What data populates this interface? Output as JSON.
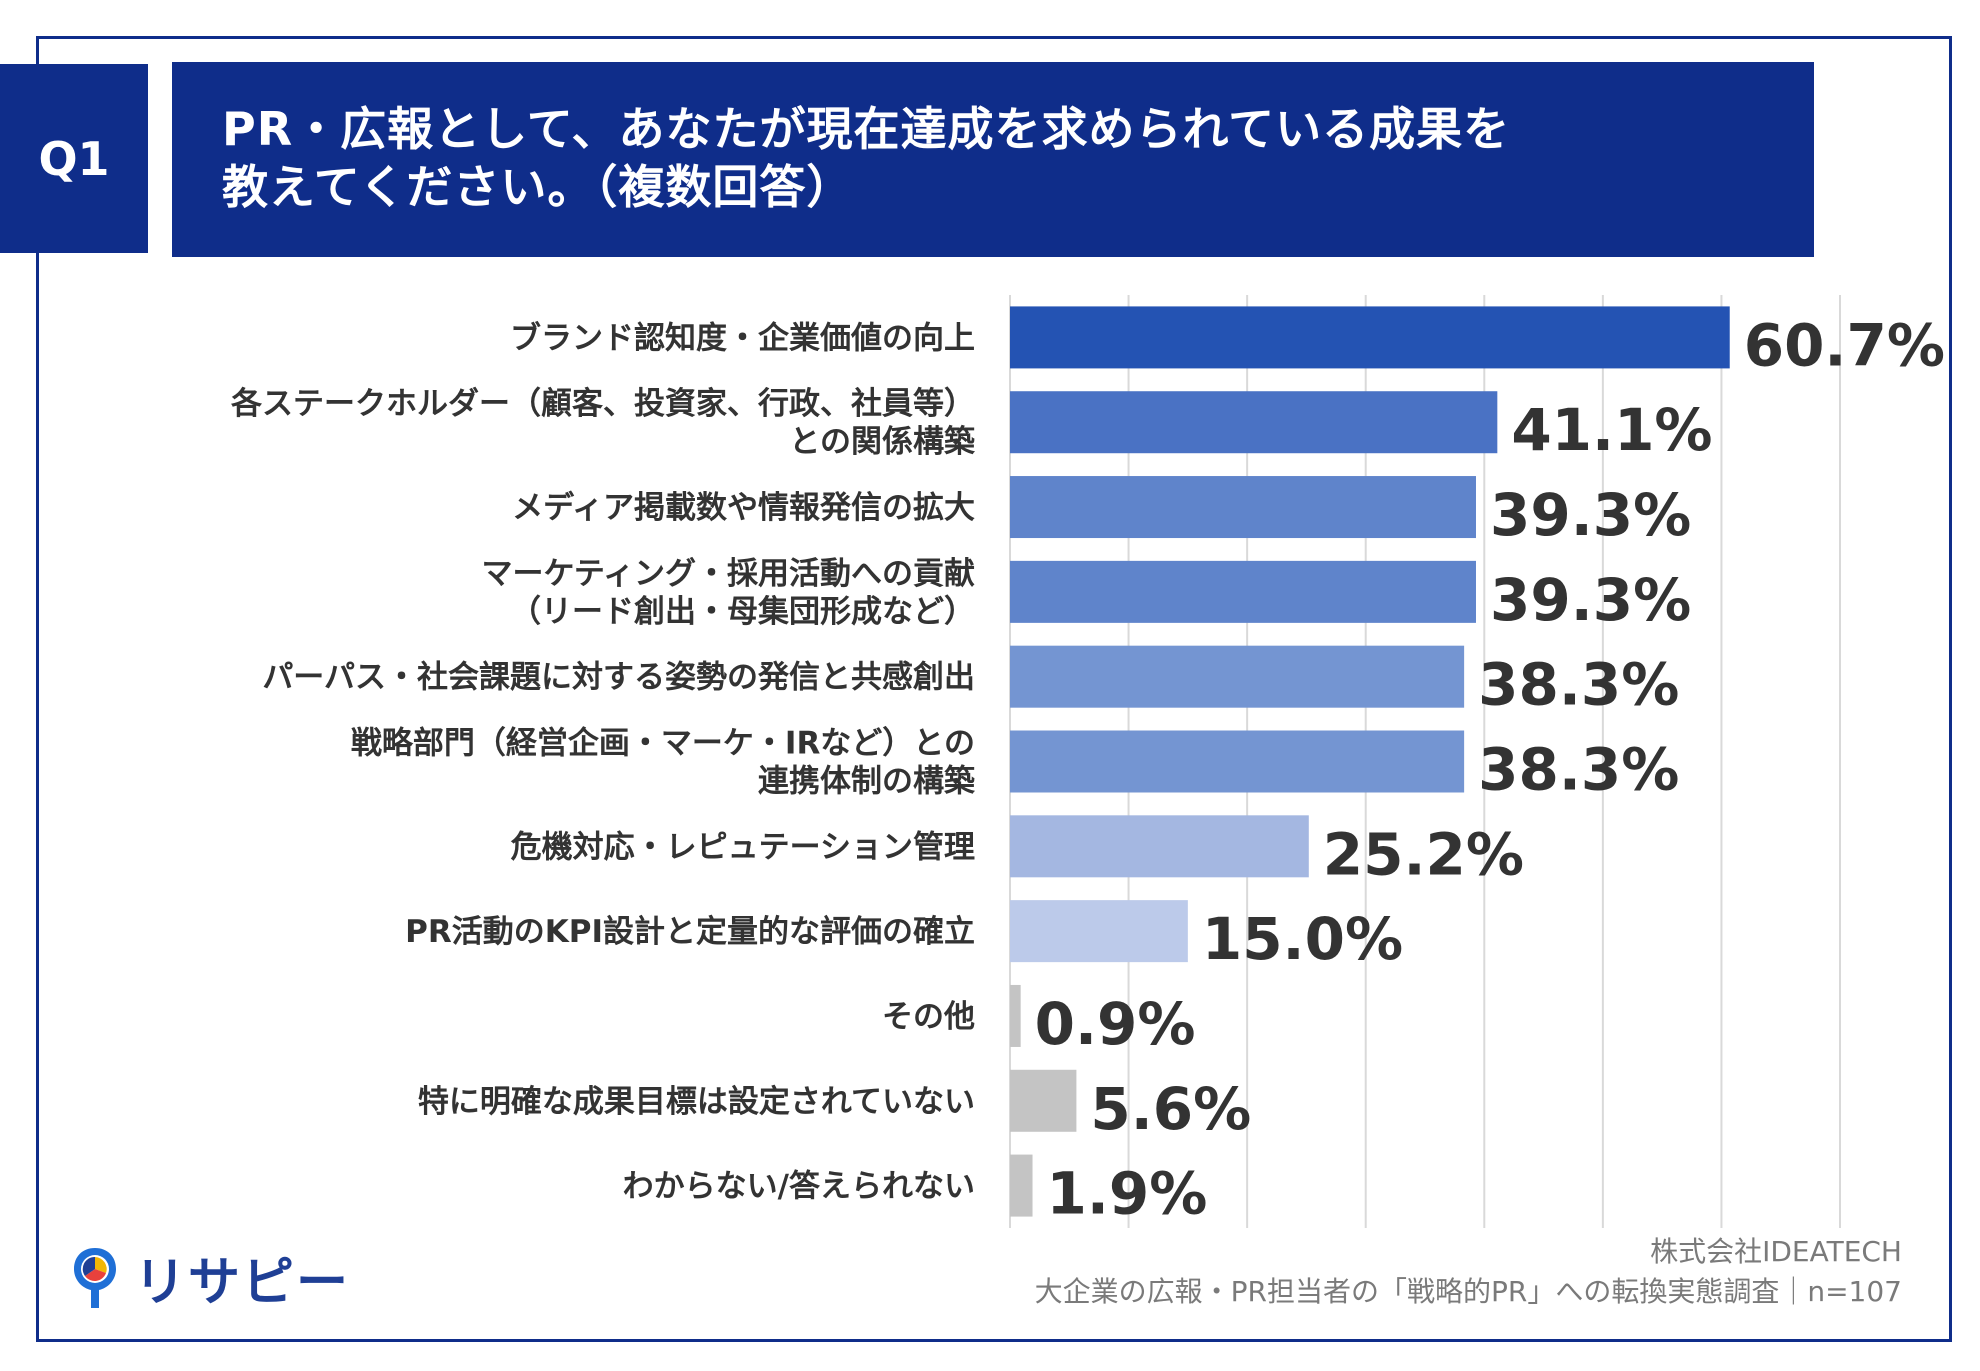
{
  "header": {
    "badge": "Q1",
    "title_line1": "PR・広報として、あなたが現在達成を求められている成果を",
    "title_line2": "教えてください。（複数回答）"
  },
  "chart_data": {
    "type": "bar",
    "orientation": "horizontal",
    "unit": "%",
    "categories": [
      [
        "ブランド認知度・企業価値の向上"
      ],
      [
        "各ステークホルダー（顧客、投資家、行政、社員等）",
        "との関係構築"
      ],
      [
        "メディア掲載数や情報発信の拡大"
      ],
      [
        "マーケティング・採用活動への貢献",
        "（リード創出・母集団形成など）"
      ],
      [
        "パーパス・社会課題に対する姿勢の発信と共感創出"
      ],
      [
        "戦略部門（経営企画・マーケ・IRなど）との",
        "連携体制の構築"
      ],
      [
        "危機対応・レピュテーション管理"
      ],
      [
        "PR活動のKPI設計と定量的な評価の確立"
      ],
      [
        "その他"
      ],
      [
        "特に明確な成果目標は設定されていない"
      ],
      [
        "わからない/答えられない"
      ]
    ],
    "values": [
      60.7,
      41.1,
      39.3,
      39.3,
      38.3,
      38.3,
      25.2,
      15.0,
      0.9,
      5.6,
      1.9
    ],
    "value_labels": [
      "60.7%",
      "41.1%",
      "39.3%",
      "39.3%",
      "38.3%",
      "38.3%",
      "25.2%",
      "15.0%",
      "0.9%",
      "5.6%",
      "1.9%"
    ],
    "bar_colors": [
      "#2453b3",
      "#4a72c4",
      "#5f84cb",
      "#5f84cb",
      "#7495d2",
      "#7495d2",
      "#a4b7e1",
      "#bccaea",
      "#c4c4c4",
      "#c4c4c4",
      "#c4c4c4"
    ],
    "xlim": [
      0,
      70
    ],
    "grid": true,
    "legend": "none"
  },
  "footer": {
    "company": "株式会社IDEATECH",
    "survey": "大企業の広報・PR担当者の「戦略的PR」への転換実態調査｜n=107"
  },
  "logo": {
    "text": "リサピー"
  },
  "colors": {
    "brand": "#0f2d8a",
    "grid": "#d9d9d9"
  }
}
